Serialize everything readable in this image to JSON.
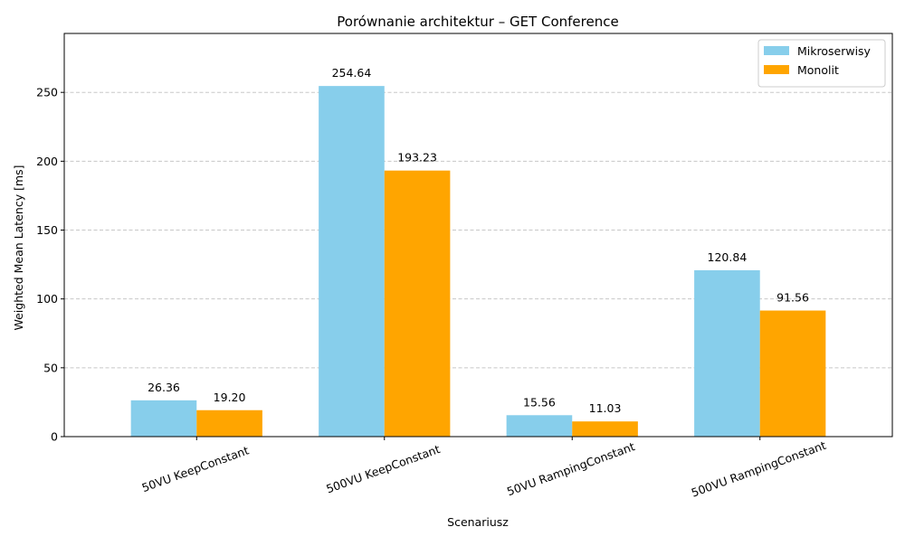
{
  "chart_data": {
    "type": "bar",
    "title": "Porównanie architektur – GET Conference",
    "xlabel": "Scenariusz",
    "ylabel": "Weighted Mean Latency [ms]",
    "categories": [
      "50VU KeepConstant",
      "500VU KeepConstant",
      "50VU RampingConstant",
      "500VU RampingConstant"
    ],
    "series": [
      {
        "name": "Mikroserwisy",
        "color": "#87CEEB",
        "values": [
          26.36,
          254.64,
          15.56,
          120.84
        ],
        "labels": [
          "26.36",
          "254.64",
          "15.56",
          "120.84"
        ]
      },
      {
        "name": "Monolit",
        "color": "#FFA500",
        "values": [
          19.2,
          193.23,
          11.03,
          91.56
        ],
        "labels": [
          "19.20",
          "193.23",
          "11.03",
          "91.56"
        ]
      }
    ],
    "ylim": [
      0,
      292.8
    ],
    "yticks": [
      0,
      50,
      100,
      150,
      200,
      250
    ],
    "grid": "y-dashed",
    "legend_position": "top-right",
    "xtick_rotation_deg": 20
  }
}
